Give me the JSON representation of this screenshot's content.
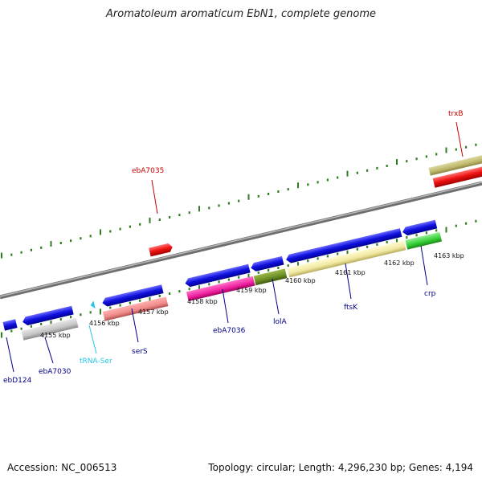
{
  "title": "Aromatoleum aromaticum EbN1, complete genome",
  "footer": {
    "accession": "Accession: NC_006513",
    "topology": "Topology: circular; Length: 4,296,230 bp; Genes: 4,194"
  },
  "scale_labels": [
    "4155 kbp",
    "4156 kbp",
    "4157 kbp",
    "4158 kbp",
    "4159 kbp",
    "4160 kbp",
    "4161 kbp",
    "4162 kbp",
    "4163 kbp"
  ],
  "gene_labels": [
    {
      "name": "ebD124",
      "color": "#00008b"
    },
    {
      "name": "ebA7030",
      "color": "#00008b"
    },
    {
      "name": "tRNA-Ser",
      "color": "#29c5e6"
    },
    {
      "name": "serS",
      "color": "#00008b"
    },
    {
      "name": "ebA7036",
      "color": "#00008b"
    },
    {
      "name": "lolA",
      "color": "#00008b"
    },
    {
      "name": "ftsK",
      "color": "#00008b"
    },
    {
      "name": "crp",
      "color": "#00008b"
    },
    {
      "name": "ebA7035",
      "color": "#cc0000"
    },
    {
      "name": "trxB",
      "color": "#cc0000"
    }
  ],
  "colors": {
    "backbone": "#8c8c8c",
    "tick": "#2e7d1e",
    "cds_blue": "#1010e0",
    "cds_red": "#ee1111",
    "gray": "#c4c4c4",
    "salmon": "#f08a8a",
    "magenta": "#f020a0",
    "olive": "#6b8e23",
    "khaki": "#f0e8a0",
    "green": "#33cc33",
    "dark_khaki": "#bdb76b",
    "trna": "#29c5e6"
  }
}
